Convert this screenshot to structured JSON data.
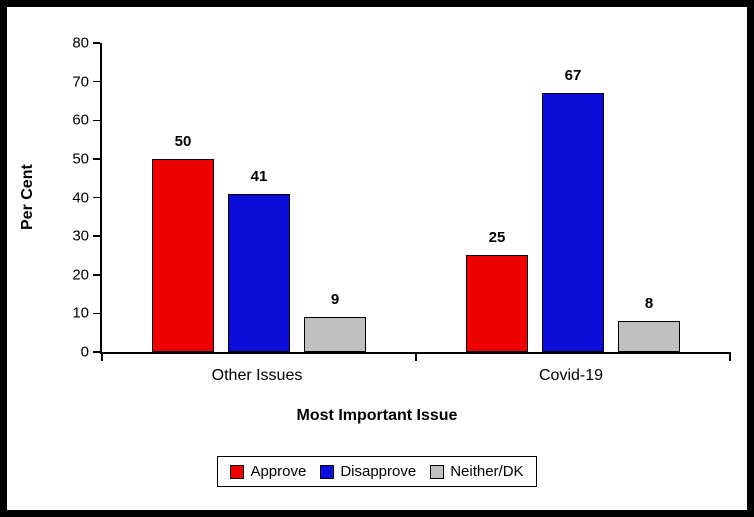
{
  "chart_data": {
    "type": "bar",
    "title": "",
    "categories": [
      "Other Issues",
      "Covid-19"
    ],
    "series": [
      {
        "name": "Approve",
        "color": "#ee0000",
        "values": [
          50,
          25
        ]
      },
      {
        "name": "Disapprove",
        "color": "#0d0dda",
        "values": [
          41,
          67
        ]
      },
      {
        "name": "Neither/DK",
        "color": "#c0c0c0",
        "values": [
          9,
          8
        ]
      }
    ],
    "xlabel": "Most Important Issue",
    "ylabel": "Per Cent",
    "ylim": [
      0,
      80
    ],
    "ytick_step": 10,
    "legend_position": "bottom",
    "grid": false,
    "value_labels": true
  }
}
